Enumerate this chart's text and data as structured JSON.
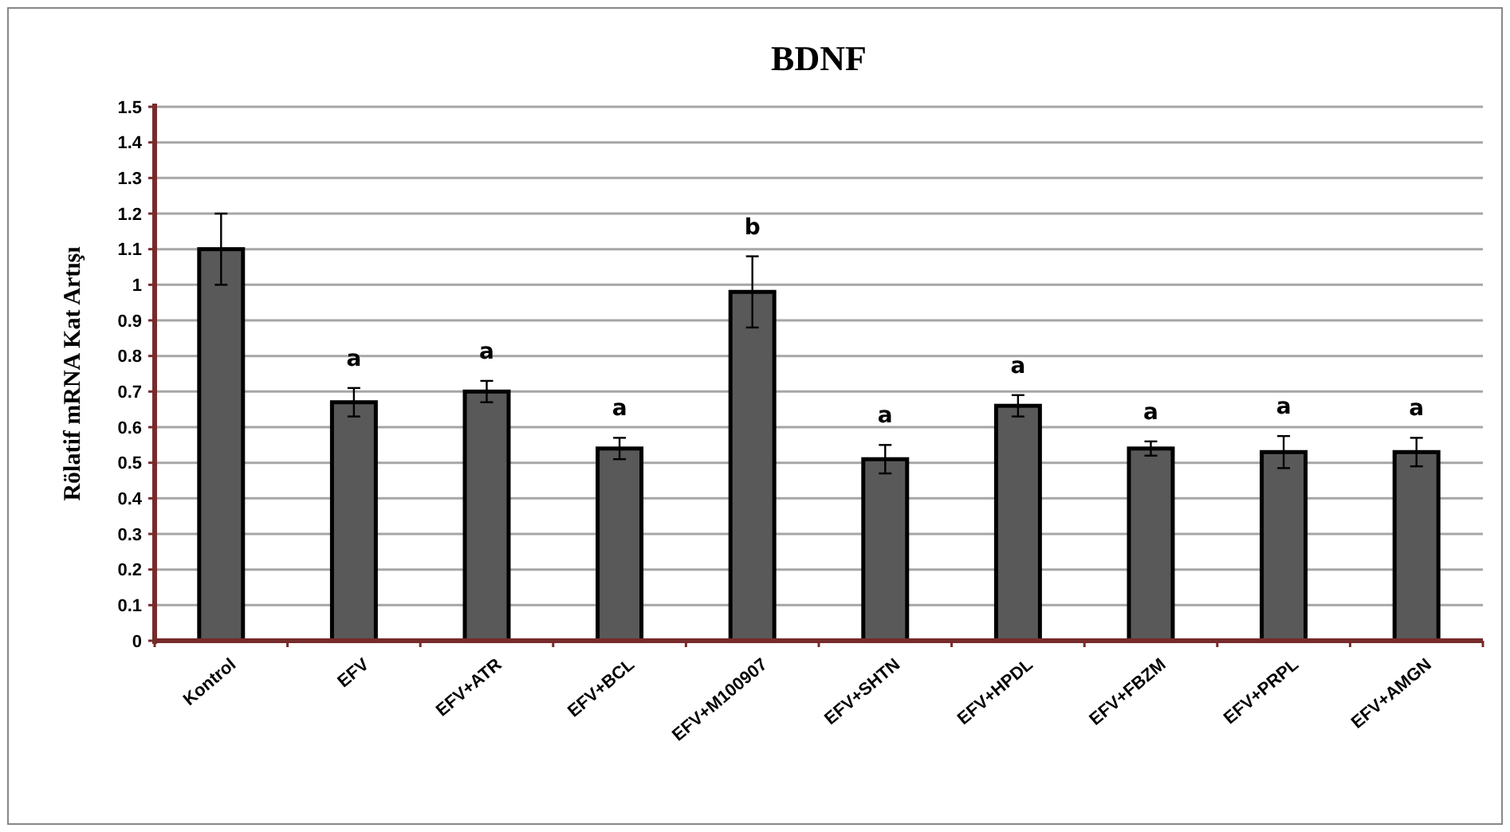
{
  "chart_data": {
    "type": "bar",
    "title": "BDNF",
    "ylabel": "Rölatif mRNA Kat Artışı",
    "categories": [
      "Kontrol",
      "EFV",
      "EFV+ATR",
      "EFV+BCL",
      "EFV+M100907",
      "EFV+SHTN",
      "EFV+HPDL",
      "EFV+FBZM",
      "EFV+PRPL",
      "EFV+AMGN"
    ],
    "values": [
      1.1,
      0.67,
      0.7,
      0.54,
      0.98,
      0.51,
      0.66,
      0.54,
      0.53,
      0.53
    ],
    "errors": [
      0.1,
      0.04,
      0.03,
      0.03,
      0.1,
      0.04,
      0.03,
      0.02,
      0.045,
      0.04
    ],
    "color": "#595959",
    "ylim": [
      0,
      1.5
    ],
    "yticks": [
      0,
      0.1,
      0.2,
      0.3,
      0.4,
      0.5,
      0.6,
      0.7,
      0.8,
      0.9,
      1,
      1.1,
      1.2,
      1.3,
      1.4,
      1.5
    ],
    "grid": "y",
    "annotations": [
      "a",
      "a",
      "a",
      "b",
      "a",
      "a",
      "a",
      "a",
      "a"
    ]
  }
}
